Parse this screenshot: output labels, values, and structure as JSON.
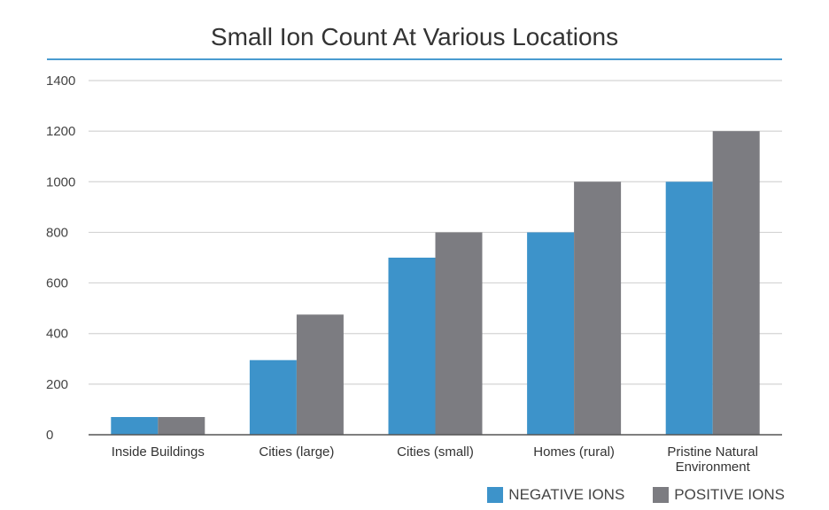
{
  "chart_data": {
    "type": "bar",
    "title": "Small Ion Count At Various Locations",
    "categories": [
      "Inside Buildings",
      "Cities (large)",
      "Cities (small)",
      "Homes (rural)",
      "Pristine Natural Environment"
    ],
    "series": [
      {
        "name": "NEGATIVE IONS",
        "color": "#3d93ca",
        "values": [
          70,
          295,
          700,
          800,
          1000
        ]
      },
      {
        "name": "POSITIVE IONS",
        "color": "#7c7c81",
        "values": [
          70,
          475,
          800,
          1000,
          1200
        ]
      }
    ],
    "yticks": [
      0,
      200,
      400,
      600,
      800,
      1000,
      1200,
      1400
    ],
    "ylim": [
      0,
      1400
    ],
    "grid": true,
    "legend": "bottom-right",
    "xlabel": "",
    "ylabel": ""
  }
}
